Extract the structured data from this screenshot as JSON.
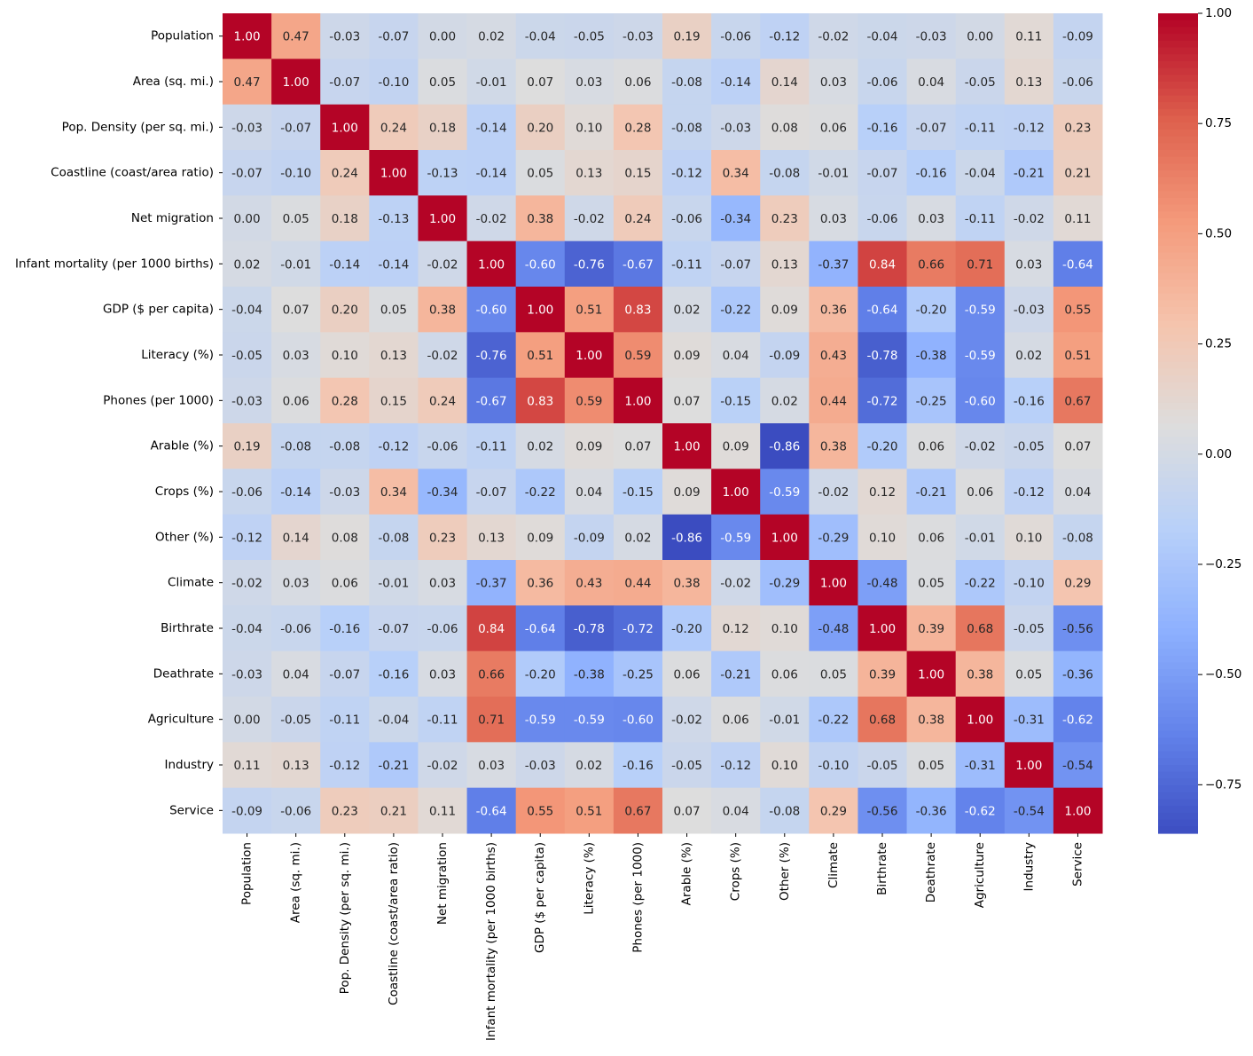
{
  "chart_data": {
    "type": "heatmap",
    "title": "",
    "xlabel": "",
    "ylabel": "",
    "colormap": "coolwarm",
    "value_format": "2 decimals",
    "labels": [
      "Population",
      "Area (sq. mi.)",
      "Pop. Density (per sq. mi.)",
      "Coastline (coast/area ratio)",
      "Net migration",
      "Infant mortality (per 1000 births)",
      "GDP ($ per capita)",
      "Literacy (%)",
      "Phones (per 1000)",
      "Arable (%)",
      "Crops (%)",
      "Other (%)",
      "Climate",
      "Birthrate",
      "Deathrate",
      "Agriculture",
      "Industry",
      "Service"
    ],
    "matrix": [
      [
        1.0,
        0.47,
        -0.03,
        -0.07,
        0.0,
        0.02,
        -0.04,
        -0.05,
        -0.03,
        0.19,
        -0.06,
        -0.12,
        -0.02,
        -0.04,
        -0.03,
        0.0,
        0.11,
        -0.09
      ],
      [
        0.47,
        1.0,
        -0.07,
        -0.1,
        0.05,
        -0.01,
        0.07,
        0.03,
        0.06,
        -0.08,
        -0.14,
        0.14,
        0.03,
        -0.06,
        0.04,
        -0.05,
        0.13,
        -0.06
      ],
      [
        -0.03,
        -0.07,
        1.0,
        0.24,
        0.18,
        -0.14,
        0.2,
        0.1,
        0.28,
        -0.08,
        -0.03,
        0.08,
        0.06,
        -0.16,
        -0.07,
        -0.11,
        -0.12,
        0.23
      ],
      [
        -0.07,
        -0.1,
        0.24,
        1.0,
        -0.13,
        -0.14,
        0.05,
        0.13,
        0.15,
        -0.12,
        0.34,
        -0.08,
        -0.01,
        -0.07,
        -0.16,
        -0.04,
        -0.21,
        0.21
      ],
      [
        0.0,
        0.05,
        0.18,
        -0.13,
        1.0,
        -0.02,
        0.38,
        -0.02,
        0.24,
        -0.06,
        -0.34,
        0.23,
        0.03,
        -0.06,
        0.03,
        -0.11,
        -0.02,
        0.11
      ],
      [
        0.02,
        -0.01,
        -0.14,
        -0.14,
        -0.02,
        1.0,
        -0.6,
        -0.76,
        -0.67,
        -0.11,
        -0.07,
        0.13,
        -0.37,
        0.84,
        0.66,
        0.71,
        0.03,
        -0.64
      ],
      [
        -0.04,
        0.07,
        0.2,
        0.05,
        0.38,
        -0.6,
        1.0,
        0.51,
        0.83,
        0.02,
        -0.22,
        0.09,
        0.36,
        -0.64,
        -0.2,
        -0.59,
        -0.03,
        0.55
      ],
      [
        -0.05,
        0.03,
        0.1,
        0.13,
        -0.02,
        -0.76,
        0.51,
        1.0,
        0.59,
        0.09,
        0.04,
        -0.09,
        0.43,
        -0.78,
        -0.38,
        -0.59,
        0.02,
        0.51
      ],
      [
        -0.03,
        0.06,
        0.28,
        0.15,
        0.24,
        -0.67,
        0.83,
        0.59,
        1.0,
        0.07,
        -0.15,
        0.02,
        0.44,
        -0.72,
        -0.25,
        -0.6,
        -0.16,
        0.67
      ],
      [
        0.19,
        -0.08,
        -0.08,
        -0.12,
        -0.06,
        -0.11,
        0.02,
        0.09,
        0.07,
        1.0,
        0.09,
        -0.86,
        0.38,
        -0.2,
        0.06,
        -0.02,
        -0.05,
        0.07
      ],
      [
        -0.06,
        -0.14,
        -0.03,
        0.34,
        -0.34,
        -0.07,
        -0.22,
        0.04,
        -0.15,
        0.09,
        1.0,
        -0.59,
        -0.02,
        0.12,
        -0.21,
        0.06,
        -0.12,
        0.04
      ],
      [
        -0.12,
        0.14,
        0.08,
        -0.08,
        0.23,
        0.13,
        0.09,
        -0.09,
        0.02,
        -0.86,
        -0.59,
        1.0,
        -0.29,
        0.1,
        0.06,
        -0.01,
        0.1,
        -0.08
      ],
      [
        -0.02,
        0.03,
        0.06,
        -0.01,
        0.03,
        -0.37,
        0.36,
        0.43,
        0.44,
        0.38,
        -0.02,
        -0.29,
        1.0,
        -0.48,
        0.05,
        -0.22,
        -0.1,
        0.29
      ],
      [
        -0.04,
        -0.06,
        -0.16,
        -0.07,
        -0.06,
        0.84,
        -0.64,
        -0.78,
        -0.72,
        -0.2,
        0.12,
        0.1,
        -0.48,
        1.0,
        0.39,
        0.68,
        -0.05,
        -0.56
      ],
      [
        -0.03,
        0.04,
        -0.07,
        -0.16,
        0.03,
        0.66,
        -0.2,
        -0.38,
        -0.25,
        0.06,
        -0.21,
        0.06,
        0.05,
        0.39,
        1.0,
        0.38,
        0.05,
        -0.36
      ],
      [
        0.0,
        -0.05,
        -0.11,
        -0.04,
        -0.11,
        0.71,
        -0.59,
        -0.59,
        -0.6,
        -0.02,
        0.06,
        -0.01,
        -0.22,
        0.68,
        0.38,
        1.0,
        -0.31,
        -0.62
      ],
      [
        0.11,
        0.13,
        -0.12,
        -0.21,
        -0.02,
        0.03,
        -0.03,
        0.02,
        -0.16,
        -0.05,
        -0.12,
        0.1,
        -0.1,
        -0.05,
        0.05,
        -0.31,
        1.0,
        -0.54
      ],
      [
        -0.09,
        -0.06,
        0.23,
        0.21,
        0.11,
        -0.64,
        0.55,
        0.51,
        0.67,
        0.07,
        0.04,
        -0.08,
        0.29,
        -0.56,
        -0.36,
        -0.62,
        -0.54,
        1.0
      ]
    ],
    "vmin": -0.86,
    "vmax": 1.0,
    "colorbar_ticks": [
      1.0,
      0.75,
      0.5,
      0.25,
      0.0,
      -0.25,
      -0.5,
      -0.75
    ],
    "colorbar_tick_labels": [
      "1.00",
      "0.75",
      "0.50",
      "0.25",
      "0.00",
      "−0.25",
      "−0.50",
      "−0.75"
    ]
  }
}
